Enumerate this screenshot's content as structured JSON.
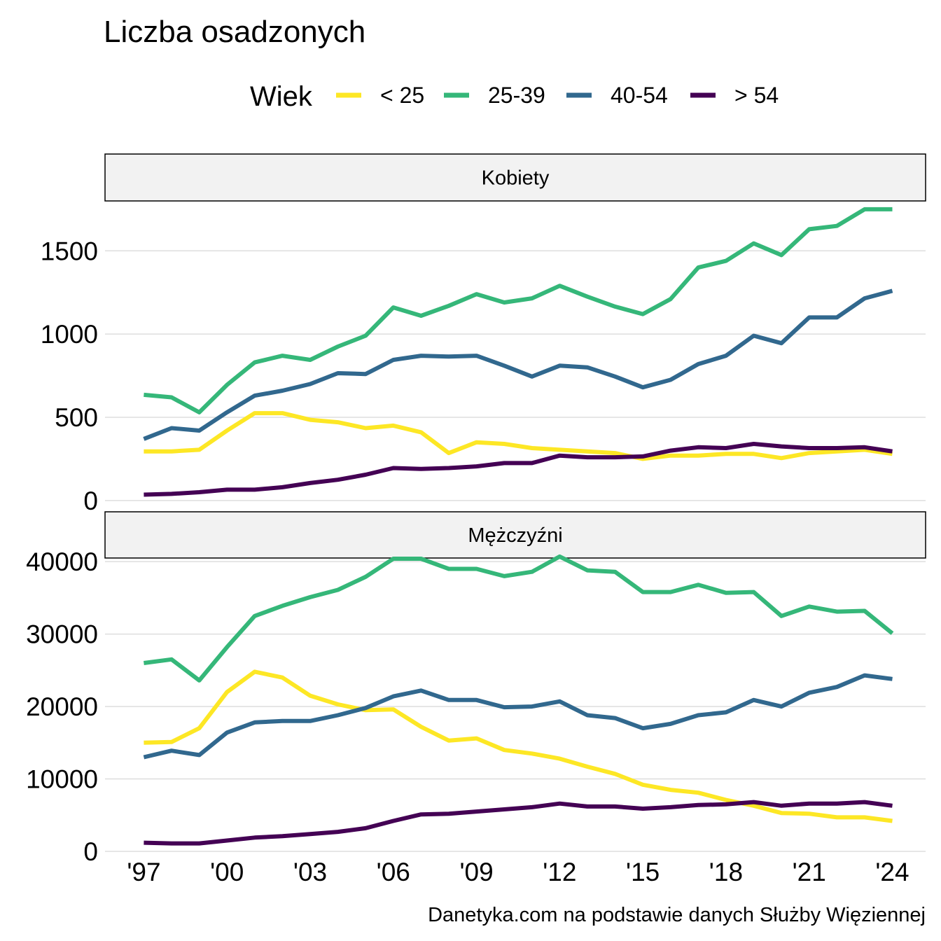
{
  "chart_data": {
    "type": "line",
    "title": "Liczba osadzonych",
    "caption": "Danetyka.com na podstawie danych Służby Więziennej",
    "legend": {
      "title": "Wiek",
      "position": "top"
    },
    "x": [
      1997,
      1998,
      1999,
      2000,
      2001,
      2002,
      2003,
      2004,
      2005,
      2006,
      2007,
      2008,
      2009,
      2010,
      2011,
      2012,
      2013,
      2014,
      2015,
      2016,
      2017,
      2018,
      2019,
      2020,
      2021,
      2022,
      2023,
      2024
    ],
    "x_ticks": [
      {
        "value": 1997,
        "label": "'97"
      },
      {
        "value": 2000,
        "label": "'00"
      },
      {
        "value": 2003,
        "label": "'03"
      },
      {
        "value": 2006,
        "label": "'06"
      },
      {
        "value": 2009,
        "label": "'09"
      },
      {
        "value": 2012,
        "label": "'12"
      },
      {
        "value": 2015,
        "label": "'15"
      },
      {
        "value": 2018,
        "label": "'18"
      },
      {
        "value": 2021,
        "label": "'21"
      },
      {
        "value": 2024,
        "label": "'24"
      }
    ],
    "xlim": [
      1995.6,
      2025.2
    ],
    "grid": true,
    "facets": [
      {
        "label": "Kobiety",
        "ylim": [
          -30,
          1800
        ],
        "y_ticks": [
          {
            "value": 0,
            "label": "0"
          },
          {
            "value": 500,
            "label": "500"
          },
          {
            "value": 1000,
            "label": "1000"
          },
          {
            "value": 1500,
            "label": "1500"
          }
        ],
        "series": [
          {
            "name": "< 25",
            "color": "#FDE725",
            "values": [
              295,
              295,
              305,
              420,
              525,
              525,
              485,
              470,
              435,
              450,
              410,
              285,
              350,
              340,
              315,
              305,
              295,
              285,
              250,
              270,
              270,
              280,
              280,
              255,
              285,
              295,
              305,
              280
            ]
          },
          {
            "name": "25-39",
            "color": "#35B779",
            "values": [
              635,
              620,
              530,
              695,
              830,
              870,
              845,
              925,
              990,
              1160,
              1110,
              1170,
              1240,
              1190,
              1215,
              1290,
              1225,
              1165,
              1120,
              1210,
              1400,
              1440,
              1545,
              1475,
              1630,
              1650,
              1750,
              1750
            ]
          },
          {
            "name": "40-54",
            "color": "#31688E",
            "values": [
              370,
              435,
              420,
              530,
              630,
              660,
              700,
              765,
              760,
              845,
              870,
              865,
              870,
              810,
              745,
              810,
              800,
              745,
              680,
              725,
              820,
              870,
              990,
              945,
              1100,
              1100,
              1215,
              1260
            ]
          },
          {
            "name": "> 54",
            "color": "#440154",
            "values": [
              35,
              40,
              50,
              65,
              65,
              80,
              105,
              125,
              155,
              195,
              190,
              195,
              205,
              225,
              225,
              270,
              260,
              260,
              265,
              300,
              320,
              315,
              340,
              325,
              315,
              315,
              320,
              295
            ]
          }
        ]
      },
      {
        "label": "Mężczyźni",
        "ylim": [
          0,
          40500
        ],
        "y_ticks": [
          {
            "value": 0,
            "label": "0"
          },
          {
            "value": 10000,
            "label": "10000"
          },
          {
            "value": 20000,
            "label": "20000"
          },
          {
            "value": 30000,
            "label": "30000"
          },
          {
            "value": 40000,
            "label": "40000"
          }
        ],
        "series": [
          {
            "name": "< 25",
            "color": "#FDE725",
            "values": [
              15000,
              15100,
              17000,
              22000,
              24800,
              24000,
              21500,
              20300,
              19500,
              19600,
              17200,
              15300,
              15600,
              14000,
              13500,
              12800,
              11700,
              10700,
              9200,
              8500,
              8100,
              7100,
              6300,
              5300,
              5200,
              4700,
              4700,
              4200
            ]
          },
          {
            "name": "25-39",
            "color": "#35B779",
            "values": [
              26000,
              26500,
              23600,
              28200,
              32500,
              33900,
              35100,
              36100,
              37900,
              40400,
              40400,
              39000,
              39000,
              38000,
              38600,
              40700,
              38800,
              38600,
              35800,
              35800,
              36800,
              35700,
              35800,
              32500,
              33800,
              33100,
              33200,
              30100
            ]
          },
          {
            "name": "40-54",
            "color": "#31688E",
            "values": [
              13000,
              13900,
              13300,
              16400,
              17800,
              18000,
              18000,
              18800,
              19800,
              21400,
              22200,
              20900,
              20900,
              19900,
              20000,
              20700,
              18800,
              18400,
              17000,
              17600,
              18800,
              19200,
              20900,
              20000,
              21900,
              22700,
              24300,
              23800
            ]
          },
          {
            "name": "> 54",
            "color": "#440154",
            "values": [
              1200,
              1100,
              1100,
              1500,
              1900,
              2100,
              2400,
              2700,
              3200,
              4200,
              5100,
              5200,
              5500,
              5800,
              6100,
              6600,
              6200,
              6200,
              5900,
              6100,
              6400,
              6500,
              6800,
              6300,
              6600,
              6600,
              6800,
              6300
            ]
          }
        ]
      }
    ]
  }
}
